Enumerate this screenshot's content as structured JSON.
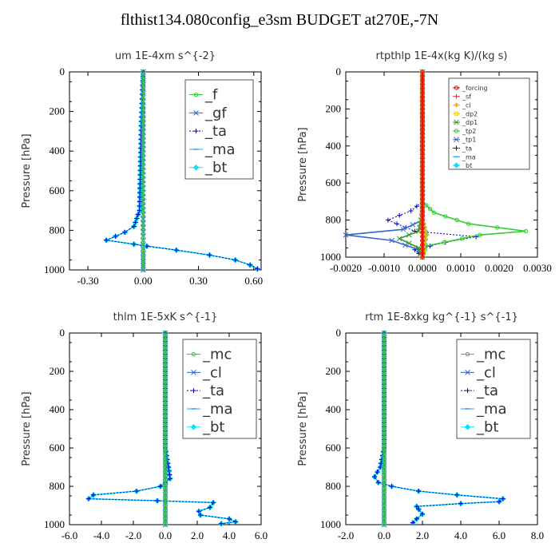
{
  "title": "flthist134.080config_e3sm  BUDGET at270E,-7N",
  "chart_data": [
    {
      "type": "line",
      "title": "um    1E-4xm  s^{-2}",
      "ylabel": "Pressure [hPa]",
      "xlim": [
        -0.4,
        0.64
      ],
      "ylim": [
        1000,
        0
      ],
      "xticks": [
        -0.3,
        0.0,
        0.3,
        0.6
      ],
      "xtick_labels": [
        "-0.30",
        "0.00",
        "0.30",
        "0.60"
      ],
      "yticks": [
        0,
        200,
        400,
        600,
        800,
        1000
      ],
      "legend": {
        "position": "top-right",
        "font": "large"
      },
      "series": [
        {
          "name": "_f",
          "color": "#33cc33",
          "marker": "circle",
          "points": [
            [
              0,
              0
            ],
            [
              0,
              100
            ],
            [
              0,
              200
            ],
            [
              0,
              400
            ],
            [
              0,
              600
            ],
            [
              0,
              800
            ],
            [
              0,
              900
            ],
            [
              0,
              1000
            ]
          ]
        },
        {
          "name": "_gf",
          "color": "#3366cc",
          "marker": "x",
          "points": [
            [
              0,
              0
            ],
            [
              0,
              850
            ],
            [
              0,
              1000
            ]
          ]
        },
        {
          "name": "_ta",
          "color": "#0000cc",
          "marker": "plus",
          "dashed": true,
          "points": [
            [
              0,
              0
            ],
            [
              -0.01,
              250
            ],
            [
              -0.02,
              700
            ],
            [
              -0.05,
              780
            ],
            [
              -0.1,
              810
            ],
            [
              -0.2,
              850
            ],
            [
              -0.05,
              870
            ],
            [
              0.02,
              880
            ],
            [
              0.18,
              900
            ],
            [
              0.36,
              925
            ],
            [
              0.5,
              950
            ],
            [
              0.58,
              975
            ],
            [
              0.62,
              995
            ]
          ]
        },
        {
          "name": "_ma",
          "color": "#3399ff",
          "marker": "dash",
          "points": [
            [
              0,
              0
            ],
            [
              0,
              1000
            ]
          ]
        },
        {
          "name": "_bt",
          "color": "#00e5ff",
          "marker": "diamond",
          "points": [
            [
              0,
              0
            ],
            [
              -0.01,
              250
            ],
            [
              -0.02,
              700
            ],
            [
              -0.05,
              780
            ],
            [
              -0.1,
              810
            ],
            [
              -0.2,
              850
            ],
            [
              -0.05,
              870
            ],
            [
              0.02,
              880
            ],
            [
              0.18,
              900
            ],
            [
              0.36,
              925
            ],
            [
              0.5,
              950
            ],
            [
              0.58,
              975
            ],
            [
              0.62,
              995
            ]
          ]
        }
      ]
    },
    {
      "type": "line",
      "title": "rtpthlp    1E-4x(kg K)/(kg s)",
      "ylabel": "Pressure [hPa]",
      "xlim": [
        -0.002,
        0.003
      ],
      "ylim": [
        1000,
        0
      ],
      "xticks": [
        -0.002,
        -0.001,
        0,
        0.001,
        0.002,
        0.003
      ],
      "xtick_labels": [
        "-0.0020",
        "-0.0010",
        "0.0000",
        "0.0010",
        "0.0020",
        "0.0030"
      ],
      "yticks": [
        0,
        200,
        400,
        600,
        800,
        1000
      ],
      "legend": {
        "position": "top-right",
        "font": "small"
      },
      "series": [
        {
          "name": "_forcing",
          "color": "#ee0000",
          "marker": "circle",
          "points": [
            [
              0,
              0
            ],
            [
              0,
              1000
            ]
          ]
        },
        {
          "name": "_sf",
          "color": "#ff3333",
          "marker": "plus",
          "points": [
            [
              0,
              0
            ],
            [
              0,
              1000
            ]
          ]
        },
        {
          "name": "_cl",
          "color": "#ffaa00",
          "marker": "star",
          "points": [
            [
              0,
              0
            ],
            [
              0,
              800
            ],
            [
              0.0001,
              880
            ],
            [
              0,
              1000
            ]
          ]
        },
        {
          "name": "_dp2",
          "color": "#ffd000",
          "marker": "square",
          "points": [
            [
              0,
              0
            ],
            [
              0,
              1000
            ]
          ]
        },
        {
          "name": "_dp1",
          "color": "#339933",
          "marker": "x",
          "points": [
            [
              0,
              0
            ],
            [
              0,
              760
            ],
            [
              -0.0001,
              860
            ],
            [
              -0.0006,
              900
            ],
            [
              -0.0001,
              950
            ],
            [
              0,
              1000
            ]
          ]
        },
        {
          "name": "_tp2",
          "color": "#33cc33",
          "marker": "circle",
          "points": [
            [
              0,
              0
            ],
            [
              0,
              700
            ],
            [
              0.0003,
              760
            ],
            [
              0.0012,
              820
            ],
            [
              0.0027,
              860
            ],
            [
              0.0015,
              880
            ],
            [
              0.0001,
              940
            ],
            [
              0,
              1000
            ]
          ]
        },
        {
          "name": "_tp1",
          "color": "#3366cc",
          "marker": "x",
          "points": [
            [
              0,
              0
            ],
            [
              0,
              800
            ],
            [
              -0.0005,
              850
            ],
            [
              -0.002,
              880
            ],
            [
              -0.0008,
              910
            ],
            [
              -0.0001,
              960
            ],
            [
              0,
              1000
            ]
          ]
        },
        {
          "name": "_ta",
          "color": "#0000cc",
          "marker": "plus",
          "dashed": true,
          "points": [
            [
              0,
              0
            ],
            [
              0,
              700
            ],
            [
              -0.0003,
              750
            ],
            [
              -0.0009,
              800
            ],
            [
              -0.0002,
              860
            ],
            [
              0.0014,
              890
            ],
            [
              0.0006,
              920
            ],
            [
              -0.0002,
              960
            ],
            [
              0,
              1000
            ]
          ]
        },
        {
          "name": "_ma",
          "color": "#3399ff",
          "marker": "dash",
          "points": [
            [
              0,
              0
            ],
            [
              0,
              1000
            ]
          ]
        },
        {
          "name": "_bt",
          "color": "#00e5ff",
          "marker": "diamond",
          "points": [
            [
              0,
              0
            ],
            [
              0,
              800
            ],
            [
              0.0001,
              880
            ],
            [
              0,
              1000
            ]
          ]
        }
      ]
    },
    {
      "type": "line",
      "title": "thlm    1E-5xK  s^{-1}",
      "ylabel": "Pressure [hPa]",
      "xlim": [
        -6.0,
        6.0
      ],
      "ylim": [
        1000,
        0
      ],
      "xticks": [
        -6,
        -4,
        -2,
        0,
        2,
        4,
        6
      ],
      "xtick_labels": [
        "-6.0",
        "-4.0",
        "-2.0",
        "0.0",
        "2.0",
        "4.0",
        "6.0"
      ],
      "yticks": [
        0,
        200,
        400,
        600,
        800,
        1000
      ],
      "legend": {
        "position": "top-right",
        "font": "large"
      },
      "series": [
        {
          "name": "_mc",
          "color": "#33cc33",
          "marker": "circle",
          "points": [
            [
              0,
              0
            ],
            [
              0,
              1000
            ]
          ]
        },
        {
          "name": "_cl",
          "color": "#3366cc",
          "marker": "x",
          "points": [
            [
              0,
              0
            ],
            [
              0,
              1000
            ]
          ]
        },
        {
          "name": "_ta",
          "color": "#0000cc",
          "marker": "plus",
          "dashed": true,
          "points": [
            [
              0,
              0
            ],
            [
              0,
              600
            ],
            [
              0.2,
              700
            ],
            [
              0.3,
              760
            ],
            [
              -0.3,
              800
            ],
            [
              -1.8,
              825
            ],
            [
              -4.5,
              845
            ],
            [
              -4.8,
              865
            ],
            [
              -0.5,
              875
            ],
            [
              3.0,
              885
            ],
            [
              2.8,
              910
            ],
            [
              2.1,
              930
            ],
            [
              2.2,
              950
            ],
            [
              4.0,
              970
            ],
            [
              4.4,
              985
            ],
            [
              3.5,
              995
            ]
          ]
        },
        {
          "name": "_ma",
          "color": "#3399ff",
          "marker": "dash",
          "points": [
            [
              0,
              0
            ],
            [
              0,
              1000
            ]
          ]
        },
        {
          "name": "_bt",
          "color": "#00e5ff",
          "marker": "diamond",
          "points": [
            [
              0,
              0
            ],
            [
              0,
              600
            ],
            [
              0.2,
              700
            ],
            [
              0.3,
              760
            ],
            [
              -0.3,
              800
            ],
            [
              -1.8,
              825
            ],
            [
              -4.5,
              845
            ],
            [
              -4.8,
              865
            ],
            [
              -0.5,
              875
            ],
            [
              3.0,
              885
            ],
            [
              2.8,
              910
            ],
            [
              2.1,
              930
            ],
            [
              2.2,
              950
            ],
            [
              4.0,
              970
            ],
            [
              4.4,
              985
            ],
            [
              3.5,
              995
            ]
          ]
        }
      ]
    },
    {
      "type": "line",
      "title": "rtm    1E-8xkg  kg^{-1}  s^{-1}",
      "ylabel": "Pressure [hPa]",
      "xlim": [
        -2.0,
        8.0
      ],
      "ylim": [
        1000,
        0
      ],
      "xticks": [
        -2,
        0,
        2,
        4,
        6,
        8
      ],
      "xtick_labels": [
        "-2.0",
        "0.0",
        "2.0",
        "4.0",
        "6.0",
        "8.0"
      ],
      "yticks": [
        0,
        200,
        400,
        600,
        800,
        1000
      ],
      "legend": {
        "position": "top-right",
        "font": "large"
      },
      "series": [
        {
          "name": "_mc",
          "color": "#33cc33",
          "marker": "circle",
          "points": [
            [
              0,
              0
            ],
            [
              0,
              1000
            ]
          ]
        },
        {
          "name": "_cl",
          "color": "#3366cc",
          "marker": "x",
          "points": [
            [
              0,
              0
            ],
            [
              0,
              1000
            ]
          ]
        },
        {
          "name": "_ta",
          "color": "#0000cc",
          "marker": "plus",
          "dashed": true,
          "points": [
            [
              0,
              0
            ],
            [
              0,
              600
            ],
            [
              -0.2,
              700
            ],
            [
              -0.5,
              750
            ],
            [
              -0.3,
              780
            ],
            [
              0.4,
              800
            ],
            [
              1.8,
              825
            ],
            [
              3.8,
              845
            ],
            [
              6.2,
              865
            ],
            [
              6.0,
              880
            ],
            [
              4.0,
              890
            ],
            [
              1.7,
              905
            ],
            [
              1.8,
              920
            ],
            [
              2.0,
              945
            ],
            [
              1.7,
              970
            ],
            [
              1.5,
              990
            ]
          ]
        },
        {
          "name": "_ma",
          "color": "#3399ff",
          "marker": "dash",
          "points": [
            [
              0,
              0
            ],
            [
              0,
              1000
            ]
          ]
        },
        {
          "name": "_bt",
          "color": "#00e5ff",
          "marker": "diamond",
          "points": [
            [
              0,
              0
            ],
            [
              0,
              600
            ],
            [
              -0.2,
              700
            ],
            [
              -0.5,
              750
            ],
            [
              -0.3,
              780
            ],
            [
              0.4,
              800
            ],
            [
              1.8,
              825
            ],
            [
              3.8,
              845
            ],
            [
              6.2,
              865
            ],
            [
              6.0,
              880
            ],
            [
              4.0,
              890
            ],
            [
              1.7,
              905
            ],
            [
              1.8,
              920
            ],
            [
              2.0,
              945
            ],
            [
              1.7,
              970
            ],
            [
              1.5,
              990
            ]
          ]
        }
      ]
    }
  ]
}
